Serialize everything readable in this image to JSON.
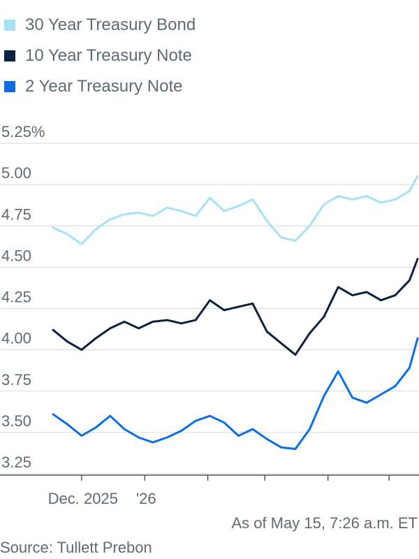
{
  "chart_data": {
    "type": "line",
    "x": [
      "2025-11-17",
      "2025-11-24",
      "2025-12-01",
      "2025-12-08",
      "2025-12-15",
      "2025-12-22",
      "2025-12-29",
      "2026-01-05",
      "2026-01-12",
      "2026-01-19",
      "2026-01-26",
      "2026-02-02",
      "2026-02-09",
      "2026-02-16",
      "2026-02-23",
      "2026-03-02",
      "2026-03-09",
      "2026-03-16",
      "2026-03-23",
      "2026-03-30",
      "2026-04-06",
      "2026-04-13",
      "2026-04-20",
      "2026-04-27",
      "2026-05-04",
      "2026-05-11",
      "2026-05-15"
    ],
    "series": [
      {
        "name": "30 Year Treasury Bond",
        "color": "#a6e1f7",
        "values": [
          4.74,
          4.7,
          4.64,
          4.73,
          4.79,
          4.82,
          4.83,
          4.81,
          4.86,
          4.84,
          4.81,
          4.92,
          4.84,
          4.87,
          4.91,
          4.78,
          4.68,
          4.66,
          4.75,
          4.88,
          4.93,
          4.91,
          4.93,
          4.89,
          4.91,
          4.96,
          5.05
        ]
      },
      {
        "name": "10 Year Treasury Note",
        "color": "#0a2240",
        "values": [
          4.12,
          4.05,
          4.0,
          4.07,
          4.13,
          4.17,
          4.13,
          4.17,
          4.18,
          4.16,
          4.18,
          4.3,
          4.24,
          4.26,
          4.28,
          4.11,
          4.04,
          3.97,
          4.1,
          4.2,
          4.38,
          4.33,
          4.35,
          4.3,
          4.33,
          4.42,
          4.55
        ]
      },
      {
        "name": "2 Year Treasury Note",
        "color": "#0b6fe3",
        "values": [
          3.61,
          3.55,
          3.48,
          3.53,
          3.6,
          3.52,
          3.47,
          3.44,
          3.47,
          3.51,
          3.57,
          3.6,
          3.56,
          3.48,
          3.52,
          3.46,
          3.41,
          3.4,
          3.52,
          3.72,
          3.87,
          3.71,
          3.68,
          3.73,
          3.78,
          3.89,
          4.07
        ]
      }
    ],
    "y_ticks": [
      "5.25%",
      "5.00",
      "4.75",
      "4.50",
      "4.25",
      "4.00",
      "3.75",
      "3.50",
      "3.25"
    ],
    "y_tick_values": [
      5.25,
      5.0,
      4.75,
      4.5,
      4.25,
      4.0,
      3.75,
      3.5,
      3.25
    ],
    "ylim": [
      3.25,
      5.25
    ],
    "xlim": [
      "2025-11-17",
      "2026-05-15"
    ],
    "x_ticks": [
      {
        "date": "2025-12-01",
        "label": "Dec. 2025"
      },
      {
        "date": "2026-01-01",
        "label": "'26"
      },
      {
        "date": "2026-02-01",
        "label": ""
      },
      {
        "date": "2026-03-01",
        "label": ""
      },
      {
        "date": "2026-04-01",
        "label": ""
      },
      {
        "date": "2026-05-01",
        "label": ""
      }
    ],
    "grid": true,
    "legend_position": "top-left"
  },
  "footer": {
    "as_of": "As of May 15, 7:26 a.m. ET",
    "source": "Source: Tullett Prebon"
  }
}
